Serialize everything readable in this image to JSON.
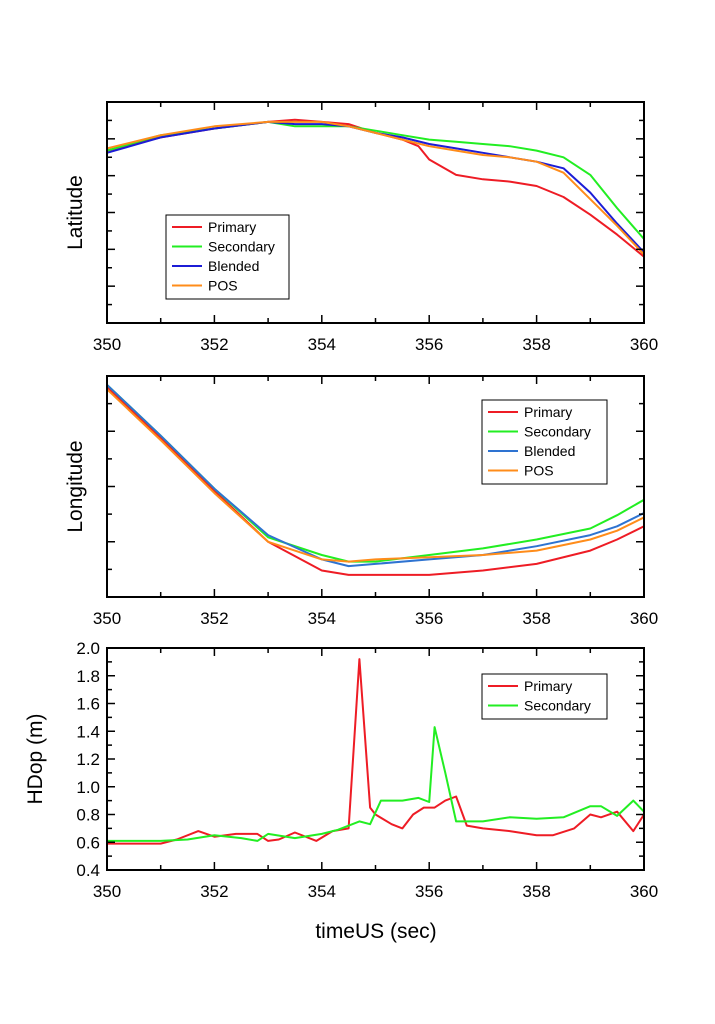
{
  "chart_data": [
    {
      "type": "line",
      "ylabel": "Latitude",
      "xlabel": "",
      "xlim": [
        350,
        360
      ],
      "xticks": [
        "350",
        "352",
        "354",
        "356",
        "358",
        "360"
      ],
      "ylim": [
        0,
        1
      ],
      "show_y_tick_labels": false,
      "legend_position": "bottom-left",
      "series": [
        {
          "name": "Primary",
          "color": "#ee1c25",
          "x": [
            350,
            351,
            352,
            353,
            353.5,
            354,
            354.5,
            355,
            355.5,
            355.8,
            356,
            356.5,
            357,
            357.5,
            358,
            358.5,
            359,
            359.5,
            360
          ],
          "y": [
            0.78,
            0.84,
            0.88,
            0.91,
            0.92,
            0.91,
            0.9,
            0.86,
            0.83,
            0.8,
            0.74,
            0.67,
            0.65,
            0.64,
            0.62,
            0.57,
            0.49,
            0.4,
            0.3
          ]
        },
        {
          "name": "Secondary",
          "color": "#22ee22",
          "x": [
            350,
            351,
            352,
            353,
            353.5,
            354,
            354.5,
            355,
            355.5,
            356,
            356.5,
            357,
            357.5,
            358,
            358.5,
            359,
            359.5,
            360
          ],
          "y": [
            0.78,
            0.85,
            0.88,
            0.91,
            0.89,
            0.89,
            0.89,
            0.87,
            0.85,
            0.83,
            0.82,
            0.81,
            0.8,
            0.78,
            0.75,
            0.67,
            0.52,
            0.38
          ]
        },
        {
          "name": "Blended",
          "color": "#1c1cd6",
          "x": [
            350,
            351,
            352,
            353,
            353.5,
            354,
            354.5,
            355,
            355.5,
            356,
            356.5,
            357,
            357.5,
            358,
            358.5,
            359,
            359.5,
            360
          ],
          "y": [
            0.77,
            0.84,
            0.88,
            0.91,
            0.9,
            0.9,
            0.89,
            0.86,
            0.84,
            0.81,
            0.79,
            0.77,
            0.75,
            0.73,
            0.7,
            0.59,
            0.45,
            0.32
          ]
        },
        {
          "name": "POS",
          "color": "#ff8c1a",
          "x": [
            350,
            351,
            352,
            353,
            353.5,
            354,
            354.5,
            355,
            355.5,
            356,
            356.5,
            357,
            357.5,
            358,
            358.5,
            359,
            359.5,
            360
          ],
          "y": [
            0.79,
            0.85,
            0.89,
            0.91,
            0.91,
            0.91,
            0.89,
            0.86,
            0.83,
            0.8,
            0.78,
            0.76,
            0.75,
            0.73,
            0.68,
            0.56,
            0.44,
            0.31
          ]
        }
      ]
    },
    {
      "type": "line",
      "ylabel": "Longitude",
      "xlabel": "",
      "xlim": [
        350,
        360
      ],
      "xticks": [
        "350",
        "352",
        "354",
        "356",
        "358",
        "360"
      ],
      "ylim": [
        0,
        1
      ],
      "show_y_tick_labels": false,
      "legend_position": "top-right",
      "series": [
        {
          "name": "Primary",
          "color": "#ee1c25",
          "x": [
            350,
            351,
            352,
            353,
            354,
            354.5,
            355,
            356,
            357,
            358,
            359,
            359.5,
            360
          ],
          "y": [
            0.95,
            0.72,
            0.48,
            0.25,
            0.12,
            0.1,
            0.1,
            0.1,
            0.12,
            0.15,
            0.21,
            0.26,
            0.32
          ]
        },
        {
          "name": "Secondary",
          "color": "#22ee22",
          "x": [
            350,
            351,
            352,
            353,
            354,
            354.5,
            355,
            356,
            357,
            358,
            359,
            359.5,
            360
          ],
          "y": [
            0.96,
            0.73,
            0.49,
            0.27,
            0.19,
            0.16,
            0.16,
            0.19,
            0.22,
            0.26,
            0.31,
            0.37,
            0.44
          ]
        },
        {
          "name": "Blended",
          "color": "#2e73d1",
          "x": [
            350,
            351,
            352,
            353,
            354,
            354.5,
            355,
            356,
            357,
            358,
            359,
            359.5,
            360
          ],
          "y": [
            0.96,
            0.73,
            0.49,
            0.28,
            0.17,
            0.14,
            0.15,
            0.17,
            0.19,
            0.23,
            0.28,
            0.32,
            0.38
          ]
        },
        {
          "name": "POS",
          "color": "#ff8c1a",
          "x": [
            350,
            351,
            352,
            353,
            354,
            354.5,
            355,
            356,
            357,
            358,
            359,
            359.5,
            360
          ],
          "y": [
            0.94,
            0.71,
            0.47,
            0.25,
            0.17,
            0.16,
            0.17,
            0.18,
            0.19,
            0.21,
            0.26,
            0.3,
            0.36
          ]
        }
      ]
    },
    {
      "type": "line",
      "ylabel": "HDop (m)",
      "xlabel": "timeUS (sec)",
      "xlim": [
        350,
        360
      ],
      "xticks": [
        "350",
        "352",
        "354",
        "356",
        "358",
        "360"
      ],
      "ylim": [
        0.4,
        2.0
      ],
      "yticks": [
        "0.4",
        "0.6",
        "0.8",
        "1.0",
        "1.2",
        "1.4",
        "1.6",
        "1.8",
        "2.0"
      ],
      "show_y_tick_labels": true,
      "legend_position": "top-right",
      "series": [
        {
          "name": "Primary",
          "color": "#ee1c25",
          "x": [
            350,
            351,
            351.3,
            351.7,
            352,
            352.4,
            352.8,
            353,
            353.2,
            353.5,
            353.9,
            354.2,
            354.5,
            354.7,
            354.9,
            355,
            355.3,
            355.5,
            355.7,
            355.9,
            356.1,
            356.3,
            356.5,
            356.7,
            357,
            357.5,
            358,
            358.3,
            358.7,
            359,
            359.2,
            359.5,
            359.8,
            360
          ],
          "y": [
            0.59,
            0.59,
            0.62,
            0.68,
            0.64,
            0.66,
            0.66,
            0.61,
            0.62,
            0.67,
            0.61,
            0.68,
            0.7,
            1.92,
            0.85,
            0.8,
            0.73,
            0.7,
            0.8,
            0.85,
            0.85,
            0.9,
            0.93,
            0.72,
            0.7,
            0.68,
            0.65,
            0.65,
            0.7,
            0.8,
            0.78,
            0.82,
            0.68,
            0.8
          ]
        },
        {
          "name": "Secondary",
          "color": "#22ee22",
          "x": [
            350,
            351,
            351.5,
            352,
            352.5,
            352.8,
            353,
            353.5,
            354,
            354.3,
            354.7,
            354.9,
            355.1,
            355.5,
            355.8,
            356,
            356.1,
            356.3,
            356.5,
            357,
            357.5,
            358,
            358.5,
            359,
            359.2,
            359.5,
            359.8,
            360
          ],
          "y": [
            0.61,
            0.61,
            0.62,
            0.65,
            0.63,
            0.61,
            0.66,
            0.63,
            0.66,
            0.69,
            0.75,
            0.73,
            0.9,
            0.9,
            0.92,
            0.89,
            1.43,
            1.1,
            0.75,
            0.75,
            0.78,
            0.77,
            0.78,
            0.86,
            0.86,
            0.79,
            0.9,
            0.82
          ]
        }
      ]
    }
  ]
}
